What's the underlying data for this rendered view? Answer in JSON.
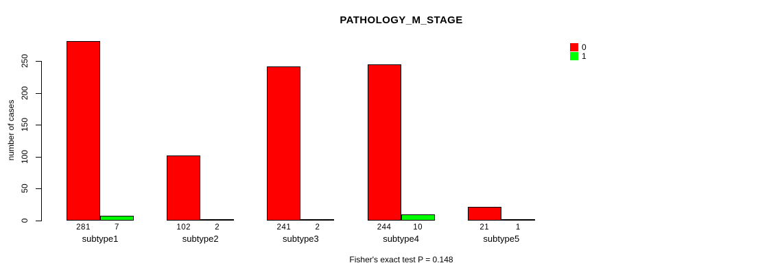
{
  "chart_data": {
    "type": "bar",
    "title": "PATHOLOGY_M_STAGE",
    "ylabel": "number of cases",
    "xlabel": "",
    "categories": [
      "subtype1",
      "subtype2",
      "subtype3",
      "subtype4",
      "subtype5"
    ],
    "series": [
      {
        "name": "0",
        "color": "#ff0000",
        "values": [
          281,
          102,
          241,
          244,
          21
        ]
      },
      {
        "name": "1",
        "color": "#00ff00",
        "values": [
          7,
          2,
          2,
          10,
          1
        ]
      }
    ],
    "y_ticks": [
      0,
      50,
      100,
      150,
      200,
      250
    ],
    "ylim": [
      0,
      290
    ],
    "grid": false,
    "legend_position": "top-right",
    "bar_value_labels": true,
    "annotation": "Fisher's exact test P = 0.148",
    "colors": {
      "background": "#ffffff",
      "axis": "#000000",
      "text": "#000000"
    }
  }
}
